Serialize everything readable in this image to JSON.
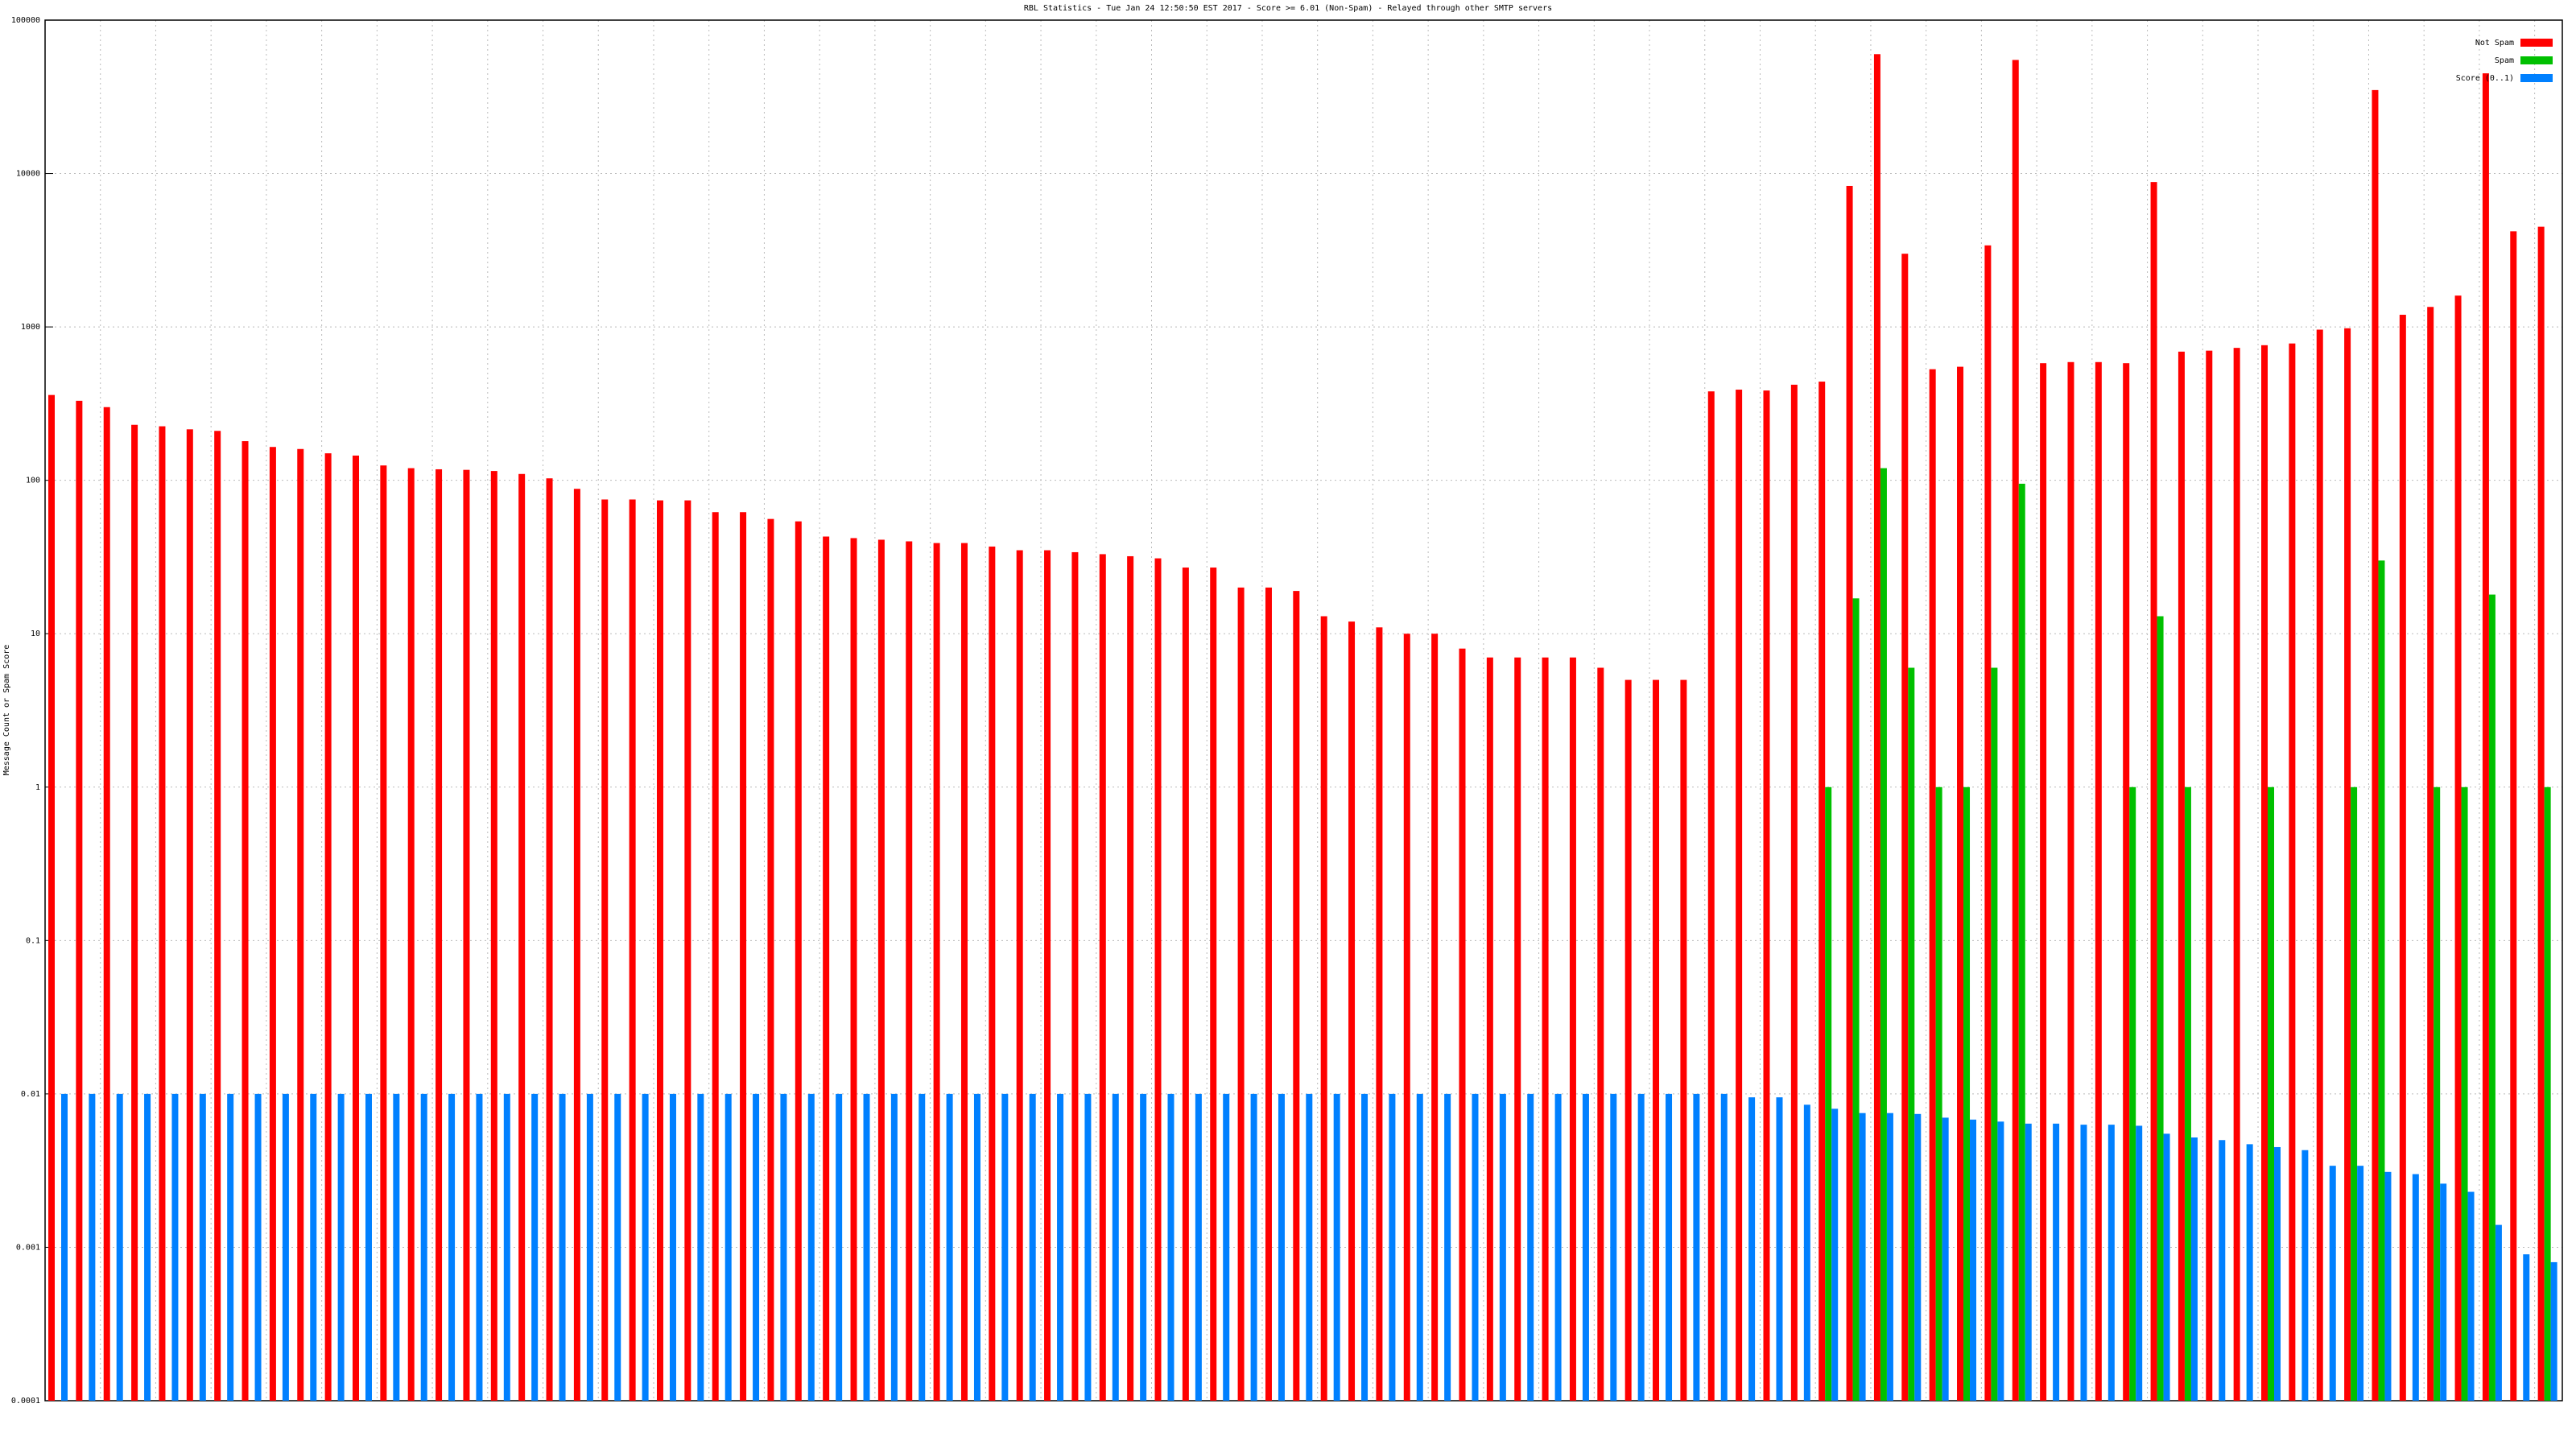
{
  "chart_data": {
    "type": "bar",
    "title": "RBL Statistics - Tue Jan 24 12:50:50 EST 2017 - Score >= 6.01 (Non-Spam) - Relayed through other SMTP servers",
    "y_label": "Message Count or Spam Score",
    "log_scale": true,
    "grid": true,
    "legend": "top-right",
    "ylim": [
      0.0001,
      100000
    ],
    "yticks": [
      0.0001,
      0.001,
      0.01,
      0.1,
      1,
      10,
      100,
      1000,
      10000,
      100000
    ],
    "categories": [
      null,
      null,
      null,
      null,
      null,
      null,
      null,
      null,
      null,
      null,
      null,
      null,
      null,
      null,
      null,
      null,
      null,
      null,
      null,
      null,
      null,
      null,
      null,
      null,
      null,
      null,
      null,
      null,
      null,
      null,
      null,
      null,
      null,
      null,
      null,
      null,
      null,
      null,
      null,
      null,
      null,
      null,
      null,
      null,
      null,
      null,
      null,
      null,
      null,
      null,
      null,
      null,
      null,
      null,
      null,
      null,
      null,
      null,
      null,
      null,
      null,
      null,
      null,
      null,
      null,
      null,
      null,
      null,
      null,
      null,
      null,
      null,
      null,
      null,
      null,
      null,
      null,
      null,
      null,
      null,
      null,
      null,
      null,
      null,
      null,
      null,
      null,
      null,
      null,
      null,
      null
    ],
    "series": [
      {
        "name": "Not Spam",
        "color": "#ff0000",
        "values": [
          360,
          330,
          300,
          230,
          225,
          215,
          210,
          180,
          165,
          160,
          150,
          145,
          125,
          120,
          118,
          117,
          115,
          110,
          103,
          88,
          75,
          75,
          74,
          74,
          62,
          62,
          56,
          54,
          43,
          42,
          41,
          40,
          39,
          39,
          37,
          35,
          35,
          34,
          33,
          32,
          31,
          27,
          27,
          20,
          20,
          19,
          13,
          12,
          11,
          10,
          10,
          8,
          7,
          7,
          7,
          7,
          6,
          5,
          5,
          5,
          380,
          390,
          385,
          420,
          440,
          8300,
          60000,
          3000,
          530,
          550,
          3400,
          55000,
          580,
          590,
          590,
          580,
          8800,
          690,
          700,
          730,
          760,
          780,
          960,
          980,
          35000,
          1200,
          1350,
          1600,
          45000,
          4200,
          4500
        ]
      },
      {
        "name": "Spam",
        "color": "#00c000",
        "values": [
          null,
          null,
          null,
          null,
          null,
          null,
          null,
          null,
          null,
          null,
          null,
          null,
          null,
          null,
          null,
          null,
          null,
          null,
          null,
          null,
          null,
          null,
          null,
          null,
          null,
          null,
          null,
          null,
          null,
          null,
          null,
          null,
          null,
          null,
          null,
          null,
          null,
          null,
          null,
          null,
          null,
          null,
          null,
          null,
          null,
          null,
          null,
          null,
          null,
          null,
          null,
          null,
          null,
          null,
          null,
          null,
          null,
          null,
          null,
          null,
          null,
          null,
          null,
          null,
          1,
          17,
          120,
          6,
          1,
          1,
          6,
          95,
          null,
          null,
          null,
          1,
          13,
          1,
          null,
          null,
          1,
          null,
          null,
          1,
          30,
          null,
          1,
          1,
          18,
          null,
          1
        ]
      },
      {
        "name": "Score (0..1)",
        "color": "#0080ff",
        "values": [
          0.01,
          0.01,
          0.01,
          0.01,
          0.01,
          0.01,
          0.01,
          0.01,
          0.01,
          0.01,
          0.01,
          0.01,
          0.01,
          0.01,
          0.01,
          0.01,
          0.01,
          0.01,
          0.01,
          0.01,
          0.01,
          0.01,
          0.01,
          0.01,
          0.01,
          0.01,
          0.01,
          0.01,
          0.01,
          0.01,
          0.01,
          0.01,
          0.01,
          0.01,
          0.01,
          0.01,
          0.01,
          0.01,
          0.01,
          0.01,
          0.01,
          0.01,
          0.01,
          0.01,
          0.01,
          0.01,
          0.01,
          0.01,
          0.01,
          0.01,
          0.01,
          0.01,
          0.01,
          0.01,
          0.01,
          0.01,
          0.01,
          0.01,
          0.01,
          0.01,
          0.01,
          0.0095,
          0.0095,
          0.0085,
          0.008,
          0.0075,
          0.0075,
          0.0074,
          0.007,
          0.0068,
          0.0066,
          0.0064,
          0.0064,
          0.0063,
          0.0063,
          0.0062,
          0.0055,
          0.0052,
          0.005,
          0.0047,
          0.0045,
          0.0043,
          0.0034,
          0.0034,
          0.0031,
          0.003,
          0.0026,
          0.0023,
          0.0014,
          0.0009,
          0.0008
        ]
      }
    ]
  }
}
